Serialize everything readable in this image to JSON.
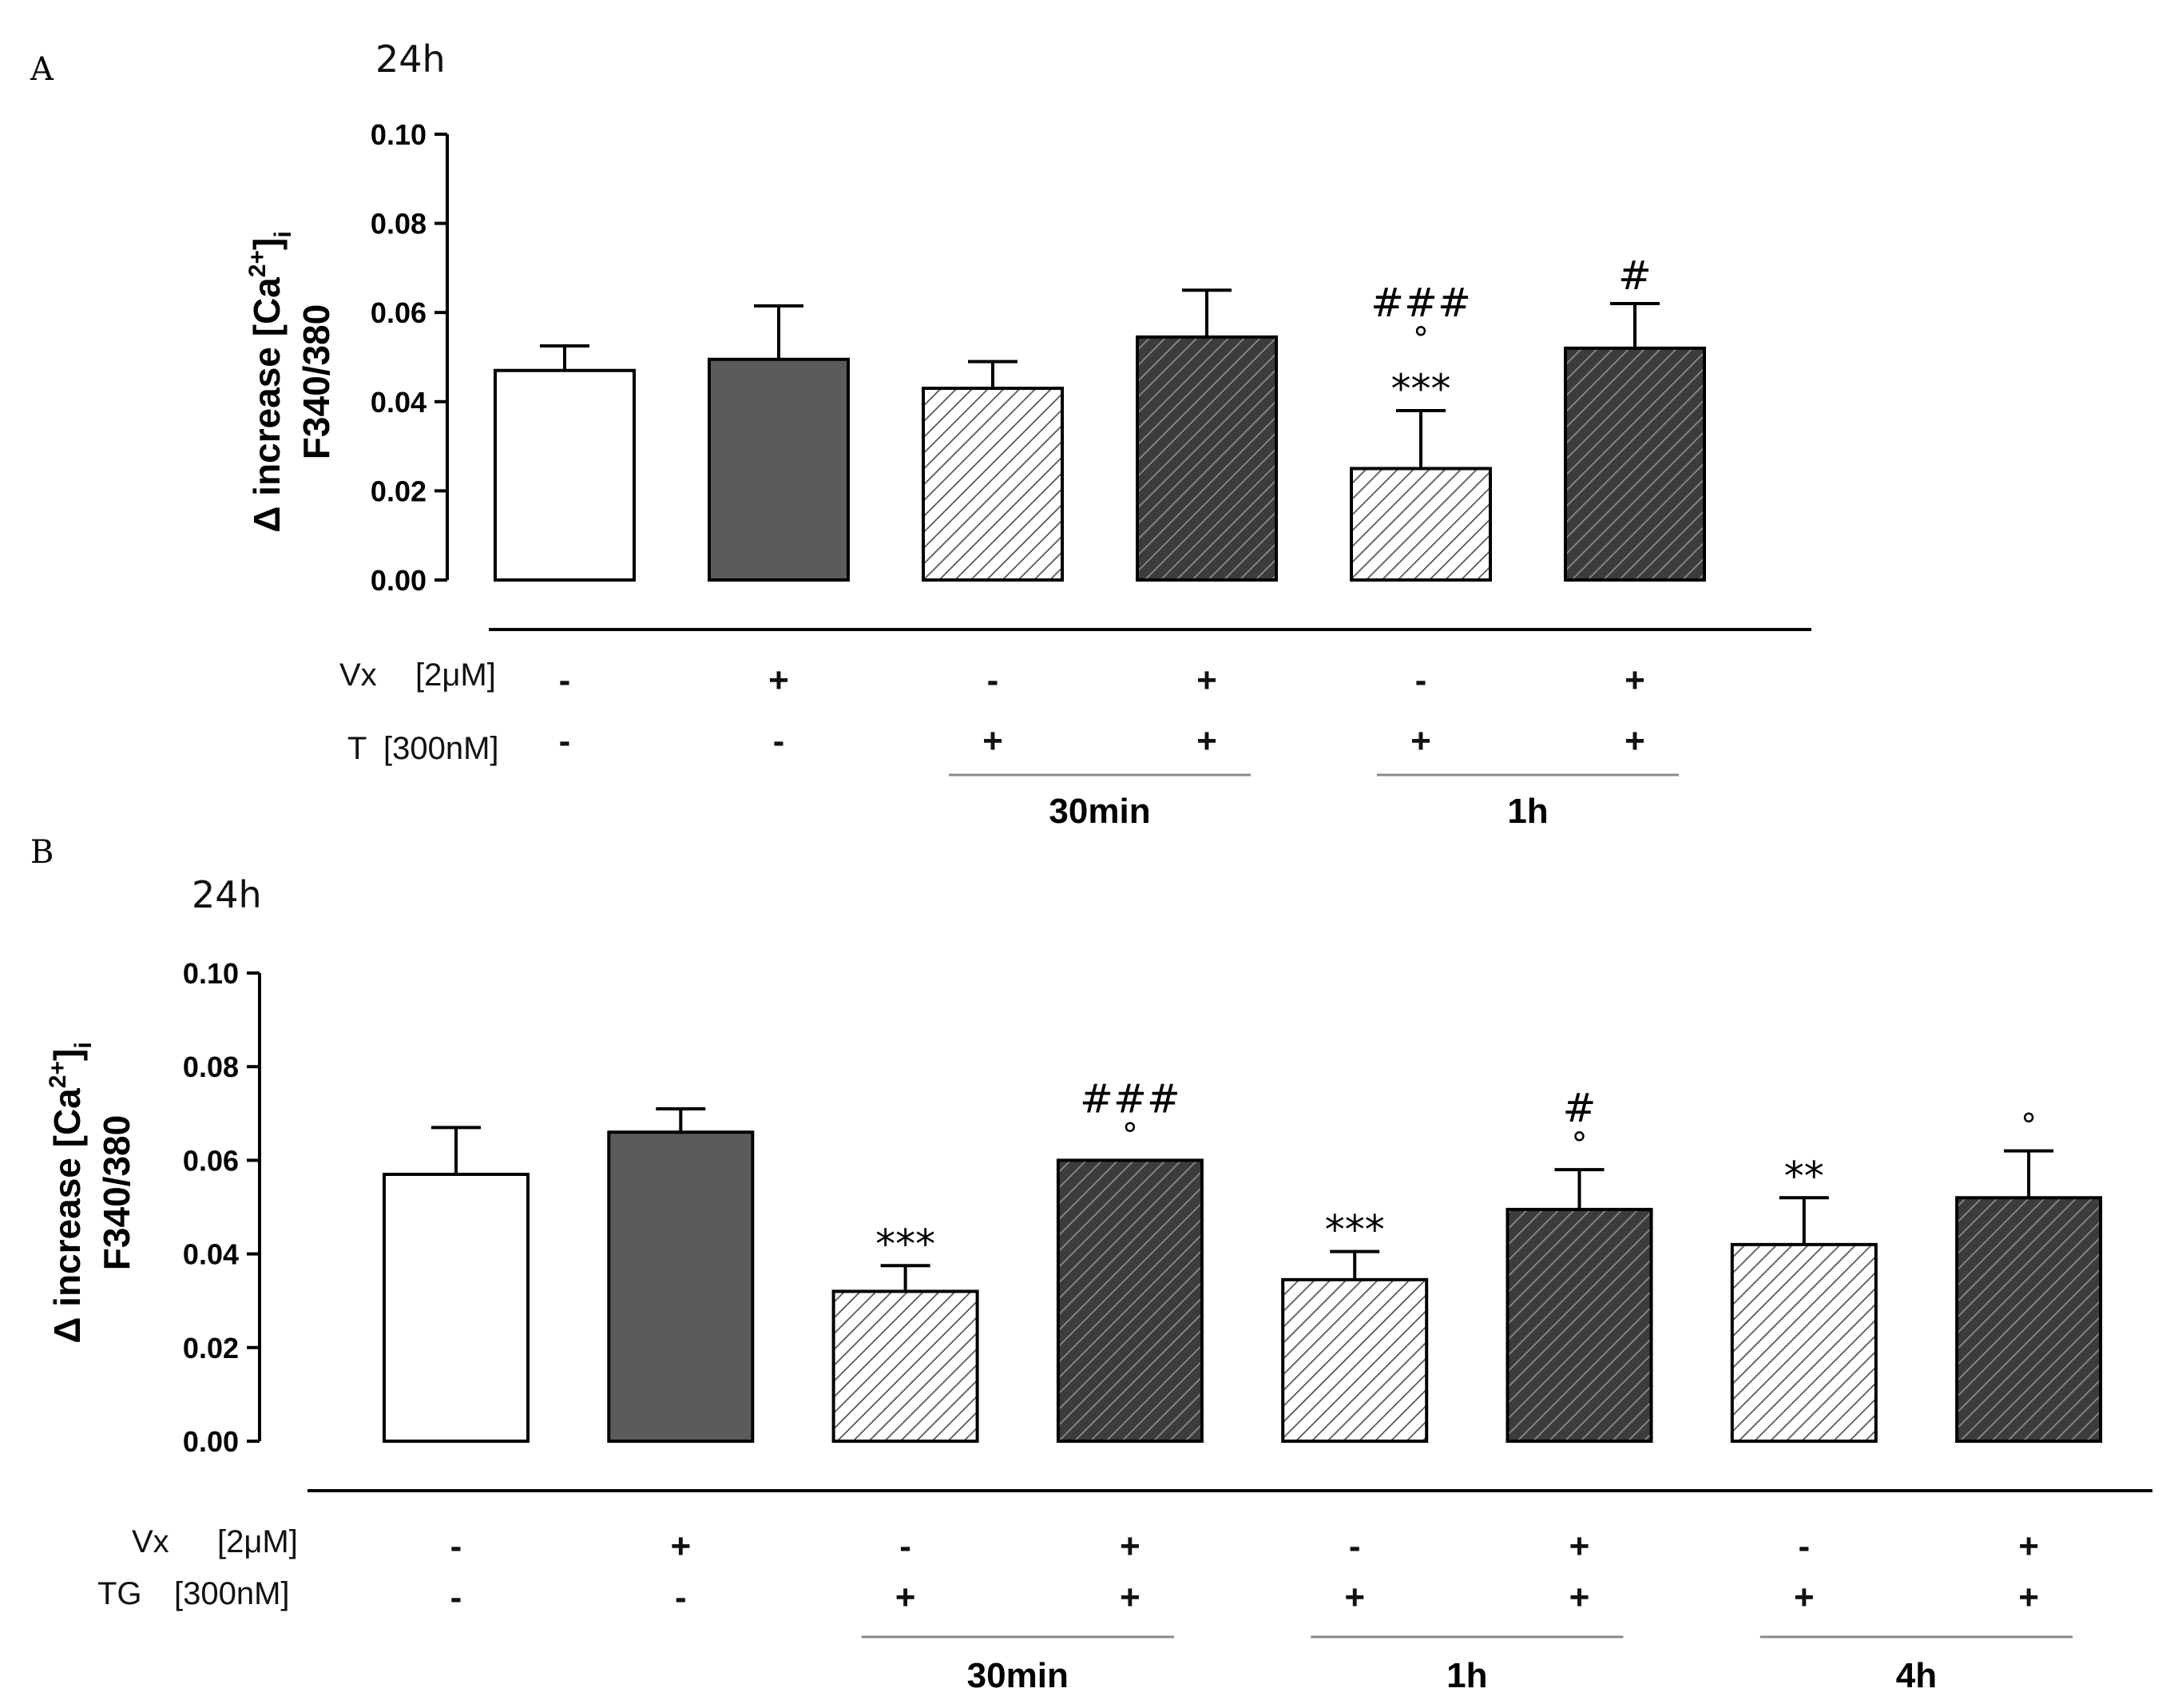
{
  "style": {
    "control_fill": "#ffffff",
    "vx_fill": "#5b5b5b",
    "hatch_light_bg": "#ffffff",
    "hatch_light_line": "#555555",
    "hatch_dark_bg": "#3c3c3c",
    "hatch_dark_line": "#8c8c8c",
    "stroke": "#000000"
  },
  "chart_data": [
    {
      "panel": "A",
      "title": "24h",
      "type": "bar",
      "ylabel": "Δ increase [Ca2+]i",
      "ylabel_line1_main": "Δ increase [Ca",
      "ylabel_sup": "2+",
      "ylabel_line1_close": "]",
      "ylabel_sub": "i",
      "ylabel_line2": "F340/380",
      "ylim": [
        0,
        0.1
      ],
      "yticks": [
        "0.00",
        "0.02",
        "0.04",
        "0.06",
        "0.08",
        "0.10"
      ],
      "bars": [
        {
          "value": 0.047,
          "error": 0.0055,
          "style": "control",
          "vx": "-",
          "t": "-",
          "annot": []
        },
        {
          "value": 0.0495,
          "error": 0.012,
          "style": "vx",
          "vx": "+",
          "t": "-",
          "annot": []
        },
        {
          "value": 0.043,
          "error": 0.006,
          "style": "hatch-light",
          "vx": "-",
          "t": "+",
          "annot": []
        },
        {
          "value": 0.0545,
          "error": 0.0105,
          "style": "hatch-dark",
          "vx": "+",
          "t": "+",
          "annot": []
        },
        {
          "value": 0.025,
          "error": 0.013,
          "style": "hatch-light",
          "vx": "-",
          "t": "+",
          "annot": [
            "***",
            "°",
            "###"
          ]
        },
        {
          "value": 0.052,
          "error": 0.01,
          "style": "hatch-dark",
          "vx": "+",
          "t": "+",
          "annot": [
            "#"
          ]
        }
      ],
      "row_labels": [
        {
          "name": "Vx",
          "conc": "[2μM]"
        },
        {
          "name": "T",
          "conc": "[300nM]"
        }
      ],
      "groups": [
        {
          "label": "30min",
          "bars": [
            2,
            3
          ]
        },
        {
          "label": "1h",
          "bars": [
            4,
            5
          ]
        }
      ]
    },
    {
      "panel": "B",
      "title": "24h",
      "type": "bar",
      "ylabel": "Δ increase [Ca2+]i",
      "ylabel_line1_main": "Δ increase [Ca",
      "ylabel_sup": "2+",
      "ylabel_line1_close": "]",
      "ylabel_sub": "i",
      "ylabel_line2": "F340/380",
      "ylim": [
        0,
        0.1
      ],
      "yticks": [
        "0.00",
        "0.02",
        "0.04",
        "0.06",
        "0.08",
        "0.10"
      ],
      "bars": [
        {
          "value": 0.057,
          "error": 0.01,
          "style": "control",
          "vx": "-",
          "t": "-",
          "annot": []
        },
        {
          "value": 0.066,
          "error": 0.005,
          "style": "vx",
          "vx": "+",
          "t": "-",
          "annot": []
        },
        {
          "value": 0.032,
          "error": 0.0055,
          "style": "hatch-light",
          "vx": "-",
          "t": "+",
          "annot": [
            "***"
          ]
        },
        {
          "value": 0.06,
          "error": 0.0,
          "style": "hatch-dark",
          "vx": "+",
          "t": "+",
          "annot": [
            "°",
            "###"
          ]
        },
        {
          "value": 0.0345,
          "error": 0.006,
          "style": "hatch-light",
          "vx": "-",
          "t": "+",
          "annot": [
            "***"
          ]
        },
        {
          "value": 0.0495,
          "error": 0.0085,
          "style": "hatch-dark",
          "vx": "+",
          "t": "+",
          "annot": [
            "°",
            "#"
          ]
        },
        {
          "value": 0.042,
          "error": 0.01,
          "style": "hatch-light",
          "vx": "-",
          "t": "+",
          "annot": [
            "**"
          ]
        },
        {
          "value": 0.052,
          "error": 0.01,
          "style": "hatch-dark",
          "vx": "+",
          "t": "+",
          "annot": [
            "°"
          ]
        }
      ],
      "row_labels": [
        {
          "name": "Vx",
          "conc": "[2μM]"
        },
        {
          "name": "TG",
          "conc": "[300nM]"
        }
      ],
      "groups": [
        {
          "label": "30min",
          "bars": [
            2,
            3
          ]
        },
        {
          "label": "1h",
          "bars": [
            4,
            5
          ]
        },
        {
          "label": "4h",
          "bars": [
            6,
            7
          ]
        }
      ]
    }
  ]
}
